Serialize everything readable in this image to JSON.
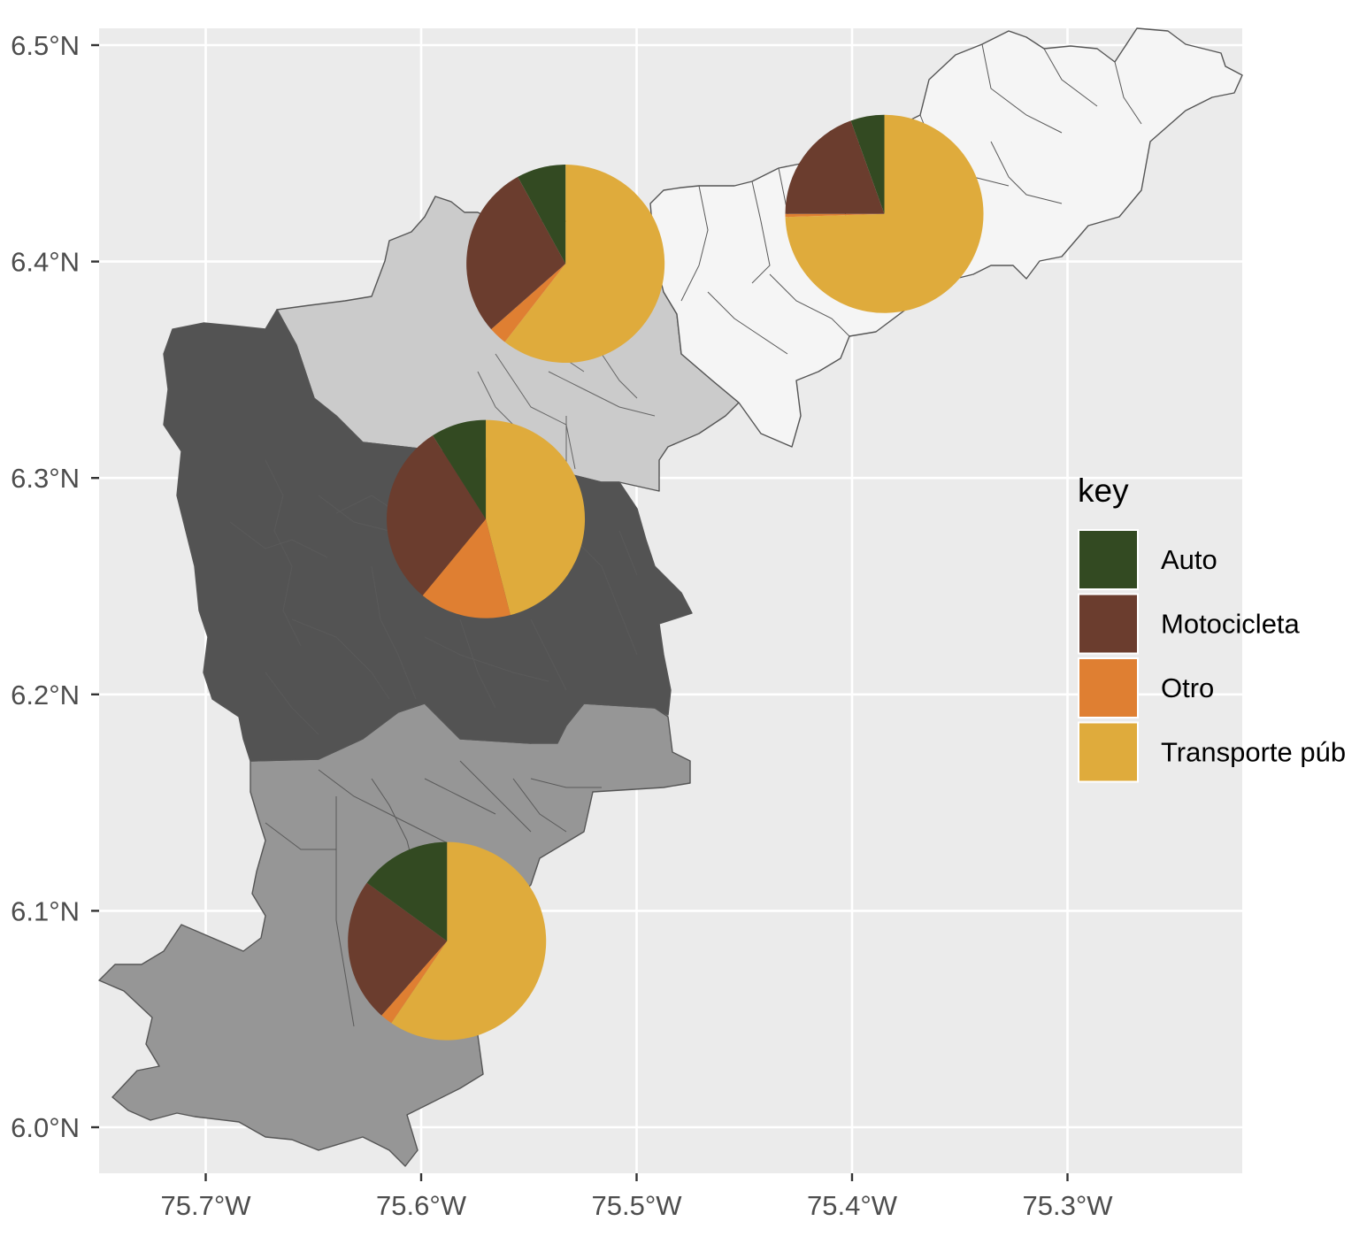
{
  "chart_data": {
    "type": "map",
    "xlim": [
      -75.75,
      -75.22
    ],
    "ylim": [
      5.98,
      6.52
    ],
    "x_ticks": [
      -75.7,
      -75.6,
      -75.5,
      -75.4,
      -75.3
    ],
    "y_ticks": [
      6.0,
      6.1,
      6.2,
      6.3,
      6.4,
      6.5
    ],
    "x_tick_labels": [
      "75.7°W",
      "75.6°W",
      "75.5°W",
      "75.4°W",
      "75.3°W"
    ],
    "y_tick_labels": [
      "6.0°N",
      "6.1°N",
      "6.2°N",
      "6.3°N",
      "6.4°N",
      "6.5°N"
    ],
    "grid": true,
    "legend": {
      "title": "key",
      "position": "right",
      "entries": [
        "Auto",
        "Motocicleta",
        "Otro",
        "Transporte púb"
      ]
    },
    "series_colors": {
      "Auto": "#334a22",
      "Motocicleta": "#6b3d2e",
      "Otro": "#df7f32",
      "Transporte púb": "#dfab3c"
    },
    "region_fills": {
      "north": "#cbcbcb",
      "northeast": "#f5f5f5",
      "center": "#535353",
      "south": "#969696"
    },
    "pies": [
      {
        "region": "northeast",
        "lon": -75.385,
        "lat": 6.422,
        "values": {
          "Auto": 5.5,
          "Motocicleta": 19.5,
          "Otro": 0.5,
          "Transporte púb": 74.5
        }
      },
      {
        "region": "north",
        "lon": -75.533,
        "lat": 6.399,
        "values": {
          "Auto": 8.0,
          "Motocicleta": 28.5,
          "Otro": 3.0,
          "Transporte púb": 60.5
        }
      },
      {
        "region": "center",
        "lon": -75.57,
        "lat": 6.281,
        "values": {
          "Auto": 9.0,
          "Motocicleta": 30.0,
          "Otro": 15.0,
          "Transporte púb": 46.0
        }
      },
      {
        "region": "south",
        "lon": -75.588,
        "lat": 6.086,
        "values": {
          "Auto": 15.0,
          "Motocicleta": 23.5,
          "Otro": 2.0,
          "Transporte púb": 59.5
        }
      }
    ]
  }
}
